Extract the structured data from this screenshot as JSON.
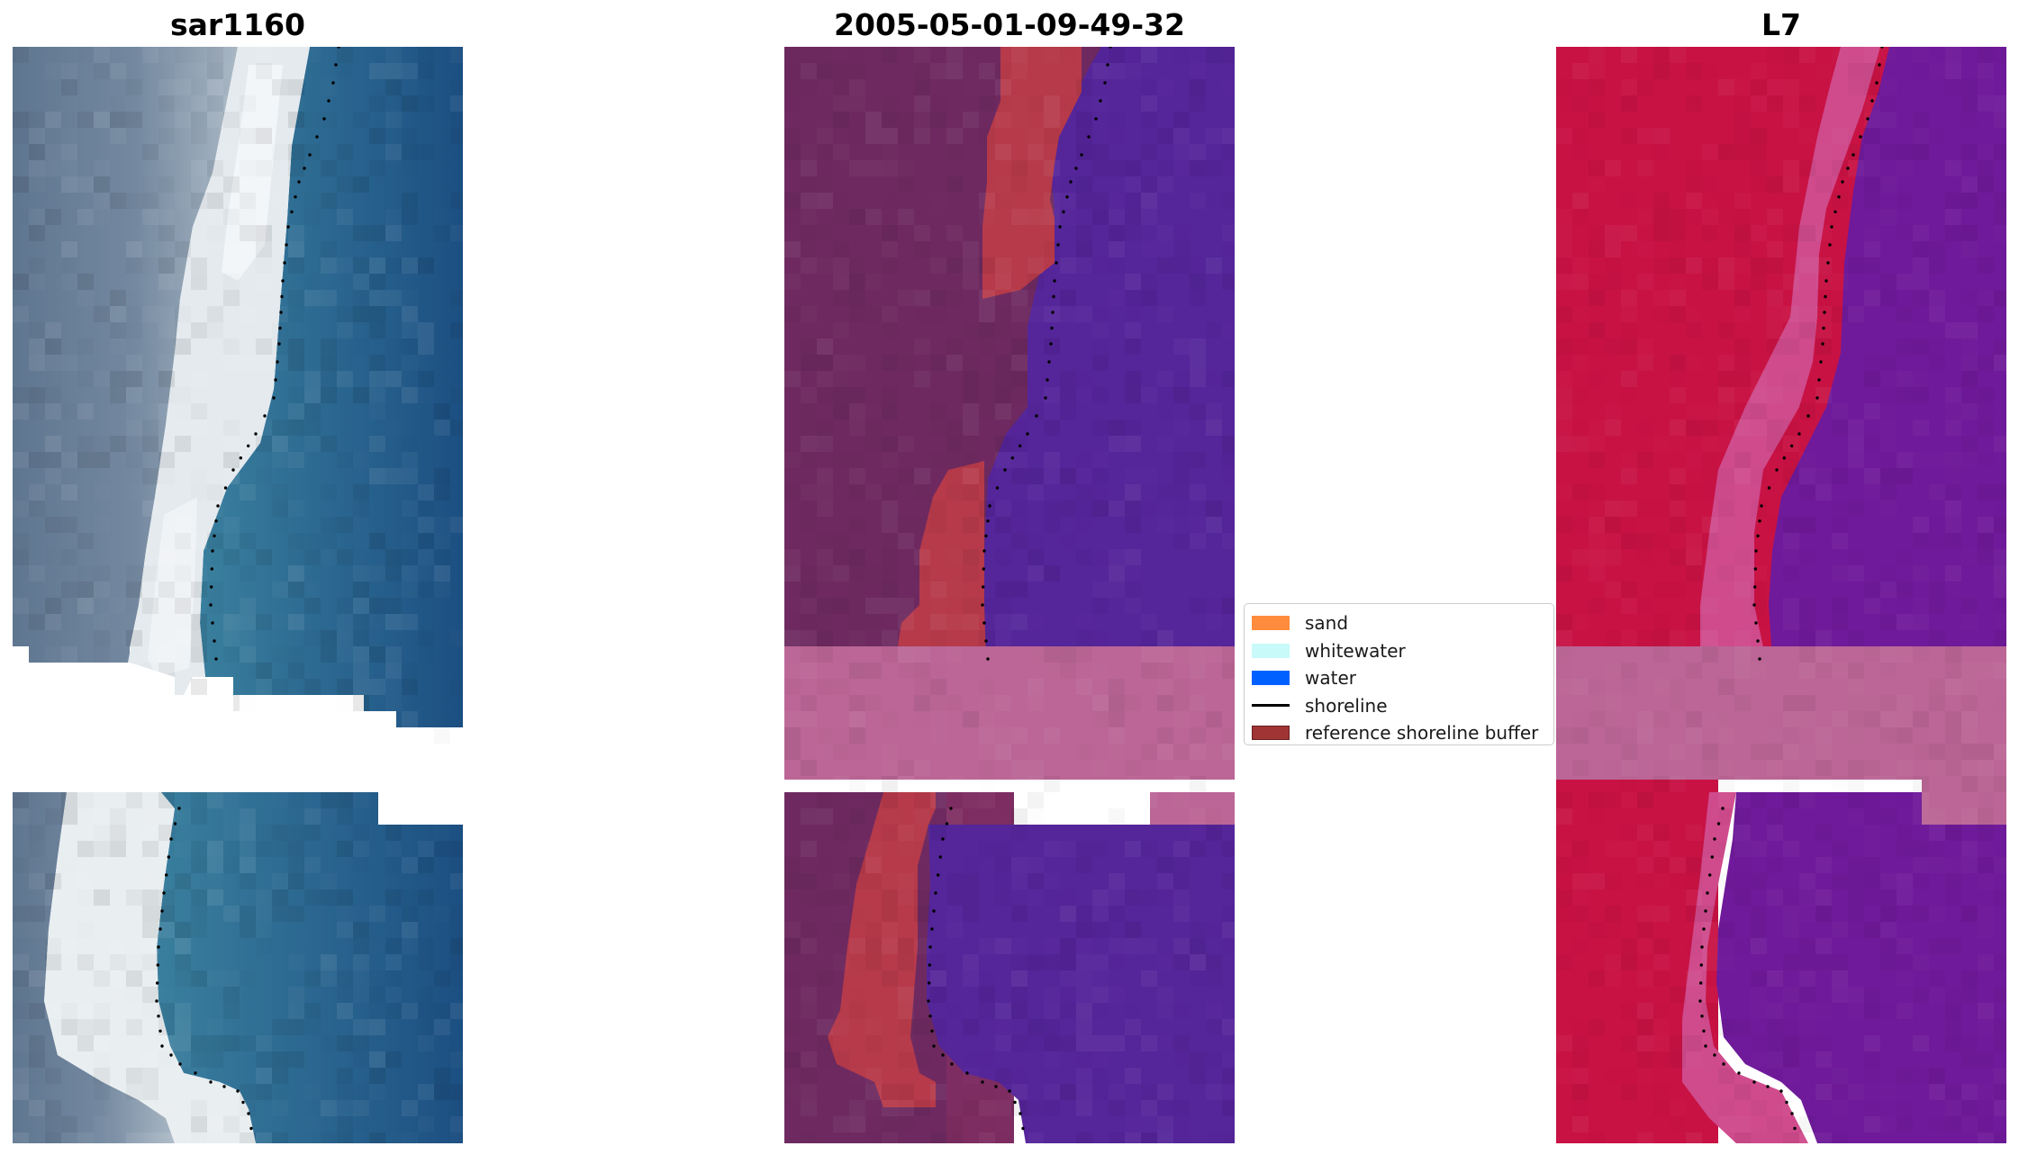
{
  "panels": [
    {
      "id": "rgb",
      "title": "sar1160"
    },
    {
      "id": "classified",
      "title": "2005-05-01-09-49-32"
    },
    {
      "id": "index",
      "title": "L7"
    }
  ],
  "legend": {
    "items": [
      {
        "key": "sand",
        "label": "sand",
        "color": "#ff8c3c",
        "type": "patch"
      },
      {
        "key": "whitewater",
        "label": "whitewater",
        "color": "#c8fafa",
        "type": "patch"
      },
      {
        "key": "water",
        "label": "water",
        "color": "#0060ff",
        "type": "patch"
      },
      {
        "key": "shoreline",
        "label": "shoreline",
        "color": "#000000",
        "type": "line"
      },
      {
        "key": "buffer",
        "label": "reference shoreline buffer",
        "color": "#a03434",
        "type": "patch"
      }
    ]
  },
  "colors": {
    "rgb_land": "#667f97",
    "rgb_beach": "#e9eef1",
    "rgb_water": "#1e5b8a",
    "classified_land": "#6e2a60",
    "classified_sand_overlay": "#b63a4a",
    "classified_water": "#55259a",
    "classified_cloud_mask": "#bb6696",
    "index_land": "#c81244",
    "index_transition": "#cf4b8c",
    "index_water": "#6f1a9a",
    "index_cloud_mask": "#bb6696",
    "shoreline": "#000000"
  }
}
